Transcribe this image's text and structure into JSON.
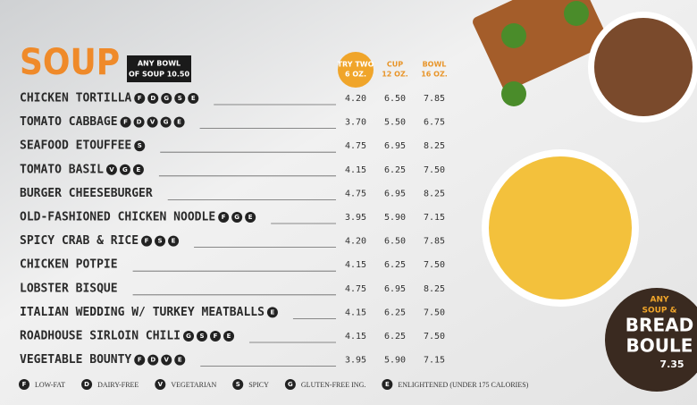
{
  "header": {
    "title": "SOUP",
    "badge": [
      "ANY BOWL",
      "OF SOUP 10.50"
    ]
  },
  "columns": [
    [
      "TRY TWO",
      "6 OZ."
    ],
    [
      "CUP",
      "12 OZ."
    ],
    [
      "BOWL",
      "16 OZ."
    ]
  ],
  "rows": [
    {
      "name": "CHICKEN TORTILLA",
      "icons": [
        "F",
        "D",
        "G",
        "S",
        "E"
      ],
      "prices": [
        "4.20",
        "6.50",
        "7.85"
      ]
    },
    {
      "name": "TOMATO CABBAGE",
      "icons": [
        "F",
        "D",
        "V",
        "G",
        "E"
      ],
      "prices": [
        "3.70",
        "5.50",
        "6.75"
      ]
    },
    {
      "name": "SEAFOOD ETOUFFEE",
      "icons": [
        "S"
      ],
      "prices": [
        "4.75",
        "6.95",
        "8.25"
      ]
    },
    {
      "name": "TOMATO BASIL",
      "icons": [
        "V",
        "G",
        "E"
      ],
      "prices": [
        "4.15",
        "6.25",
        "7.50"
      ]
    },
    {
      "name": "BURGER CHEESEBURGER",
      "icons": [],
      "prices": [
        "4.75",
        "6.95",
        "8.25"
      ]
    },
    {
      "name": "OLD-FASHIONED CHICKEN NOODLE",
      "icons": [
        "F",
        "G",
        "E"
      ],
      "prices": [
        "3.95",
        "5.90",
        "7.15"
      ]
    },
    {
      "name": "SPICY CRAB & RICE",
      "icons": [
        "F",
        "S",
        "E"
      ],
      "prices": [
        "4.20",
        "6.50",
        "7.85"
      ]
    },
    {
      "name": "CHICKEN POTPIE",
      "icons": [],
      "prices": [
        "4.15",
        "6.25",
        "7.50"
      ]
    },
    {
      "name": "LOBSTER BISQUE",
      "icons": [],
      "prices": [
        "4.75",
        "6.95",
        "8.25"
      ]
    },
    {
      "name": "ITALIAN WEDDING W/ TURKEY MEATBALLS",
      "icons": [
        "E"
      ],
      "prices": [
        "4.15",
        "6.25",
        "7.50"
      ]
    },
    {
      "name": "ROADHOUSE SIRLOIN CHILI",
      "icons": [
        "G",
        "S",
        "F",
        "E"
      ],
      "prices": [
        "4.15",
        "6.25",
        "7.50"
      ]
    },
    {
      "name": "VEGETABLE BOUNTY",
      "icons": [
        "F",
        "D",
        "V",
        "E"
      ],
      "prices": [
        "3.95",
        "5.90",
        "7.15"
      ]
    }
  ],
  "legend": [
    {
      "symbol": "F",
      "label": "LOW-FAT"
    },
    {
      "symbol": "D",
      "label": "DAIRY-FREE"
    },
    {
      "symbol": "V",
      "label": "VEGETARIAN"
    },
    {
      "symbol": "S",
      "label": "SPICY"
    },
    {
      "symbol": "G",
      "label": "GLUTEN-FREE ING."
    },
    {
      "symbol": "E",
      "label": "ENLIGHTENED (UNDER 175 CALORIES)"
    }
  ],
  "promo": {
    "lines": [
      "ANY",
      "SOUP &",
      "BREAD",
      "BOULE"
    ],
    "price": "7.35"
  }
}
